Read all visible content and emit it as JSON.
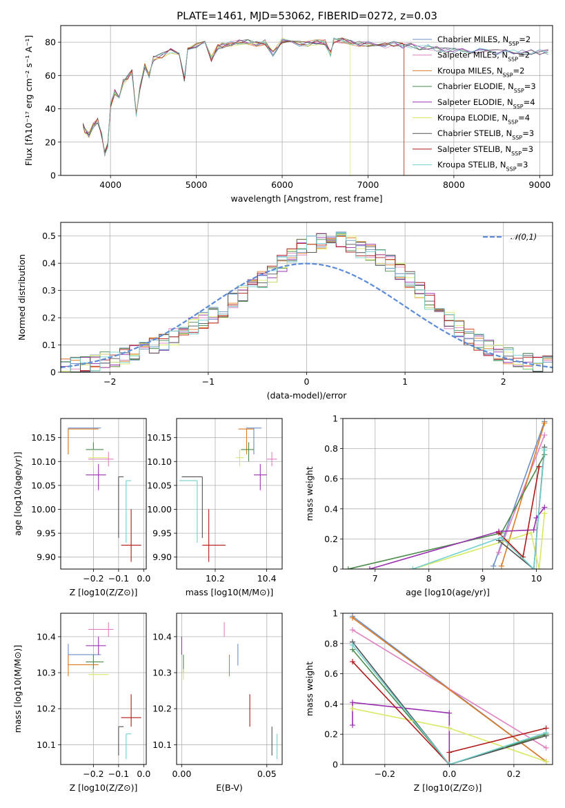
{
  "page": {
    "title": "PLATE=1461, MJD=53062, FIBERID=0272, z=0.03"
  },
  "colors": {
    "Chabrier MILES": "#6a8ec8",
    "Salpeter MILES": "#e07fc0",
    "Kroupa MILES": "#e07a20",
    "Chabrier ELODIE": "#4a8a4a",
    "Salpeter ELODIE": "#9a30b0",
    "Kroupa ELODIE": "#d8e860",
    "Chabrier STELIB": "#505050",
    "Salpeter STELIB": "#b01818",
    "Kroupa STELIB": "#70d0d0",
    "gauss": "#5b8bd8",
    "grid": "#b0b0b0"
  },
  "legend": [
    {
      "name": "Chabrier MILES",
      "base": "Chabrier MILES, N",
      "sub": "SSP",
      "tail": "=2"
    },
    {
      "name": "Salpeter MILES",
      "base": "Salpeter MILES, N",
      "sub": "SSP",
      "tail": "=2"
    },
    {
      "name": "Kroupa MILES",
      "base": "Kroupa MILES, N",
      "sub": "SSP",
      "tail": "=2"
    },
    {
      "name": "Chabrier ELODIE",
      "base": "Chabrier ELODIE, N",
      "sub": "SSP",
      "tail": "=3"
    },
    {
      "name": "Salpeter ELODIE",
      "base": "Salpeter ELODIE, N",
      "sub": "SSP",
      "tail": "=4"
    },
    {
      "name": "Kroupa ELODIE",
      "base": "Kroupa ELODIE, N",
      "sub": "SSP",
      "tail": "=4"
    },
    {
      "name": "Chabrier STELIB",
      "base": "Chabrier STELIB, N",
      "sub": "SSP",
      "tail": "=3"
    },
    {
      "name": "Salpeter STELIB",
      "base": "Salpeter STELIB, N",
      "sub": "SSP",
      "tail": "=3"
    },
    {
      "name": "Kroupa STELIB",
      "base": "Kroupa STELIB, N",
      "sub": "SSP",
      "tail": "=3"
    }
  ],
  "gauss_legend": "𝒩(0,1)",
  "chart_data": [
    {
      "id": "spectrum",
      "type": "line",
      "xlabel": "wavelength [Angstrom, rest frame]",
      "ylabel": "Flux [fλ10⁻¹⁷ erg cm⁻² s⁻¹ A⁻¹]",
      "xlim": [
        3420,
        9150
      ],
      "ylim": [
        0,
        90
      ],
      "xticks": [
        4000,
        5000,
        6000,
        7000,
        8000,
        9000
      ],
      "yticks": [
        0,
        20,
        40,
        60,
        80
      ],
      "legend_position": "upper right",
      "x": [
        3680,
        3700,
        3750,
        3800,
        3850,
        3900,
        3933,
        3968,
        4000,
        4050,
        4101,
        4150,
        4200,
        4250,
        4300,
        4340,
        4400,
        4450,
        4500,
        4600,
        4700,
        4800,
        4861,
        4900,
        5000,
        5100,
        5175,
        5250,
        5300,
        5400,
        5500,
        5600,
        5700,
        5800,
        5893,
        6000,
        6100,
        6200,
        6300,
        6400,
        6500,
        6563,
        6600,
        6700,
        6800,
        6900,
        7000,
        7100,
        7200,
        7300,
        7400,
        7500,
        7600,
        7700,
        7800,
        7900,
        8000,
        8100,
        8200,
        8300,
        8400,
        8500,
        8600,
        8700,
        8800,
        8900,
        9000,
        9100
      ],
      "flux": [
        30,
        27,
        24,
        30,
        33,
        24,
        13,
        18,
        42,
        50,
        48,
        56,
        59,
        62,
        36,
        52,
        66,
        60,
        70,
        72,
        75,
        74,
        58,
        76,
        78,
        79,
        70,
        77,
        78,
        79,
        80,
        80,
        79,
        80,
        73,
        81,
        80,
        79,
        79,
        80,
        80,
        73,
        81,
        81,
        80,
        79,
        79,
        79,
        78,
        79,
        78,
        78,
        77,
        77,
        76,
        75,
        75,
        75,
        75,
        75,
        75,
        74,
        74,
        74,
        74,
        74,
        74,
        74
      ],
      "dropouts": [
        {
          "series": "Kroupa ELODIE",
          "from": 6790
        },
        {
          "series": "Kroupa MILES",
          "from": 7420
        },
        {
          "series": "Salpeter STELIB",
          "from": 7420
        }
      ]
    },
    {
      "id": "residuals",
      "type": "histogram",
      "xlabel": "(data-model)/error",
      "ylabel": "Normed distribution",
      "xlim": [
        -2.5,
        2.5
      ],
      "ylim": [
        0,
        0.55
      ],
      "xticks": [
        -2,
        -1,
        0,
        1,
        2
      ],
      "yticks": [
        0.0,
        0.1,
        0.2,
        0.3,
        0.4,
        0.5
      ],
      "bin_width": 0.1,
      "bin_start": -2.5,
      "base_heights": [
        0.02,
        0.025,
        0.03,
        0.035,
        0.045,
        0.05,
        0.06,
        0.07,
        0.08,
        0.1,
        0.11,
        0.13,
        0.15,
        0.17,
        0.19,
        0.21,
        0.23,
        0.26,
        0.29,
        0.31,
        0.34,
        0.36,
        0.4,
        0.43,
        0.46,
        0.47,
        0.48,
        0.5,
        0.49,
        0.47,
        0.45,
        0.44,
        0.42,
        0.4,
        0.37,
        0.34,
        0.3,
        0.26,
        0.22,
        0.19,
        0.16,
        0.13,
        0.11,
        0.09,
        0.07,
        0.06,
        0.05,
        0.04,
        0.03,
        0.03
      ],
      "gauss": {
        "mu": 0,
        "sigma": 1,
        "label": "𝒩(0,1)"
      }
    },
    {
      "id": "age-vs-Z",
      "type": "errorbar",
      "xlabel": "Z [log10(Z/Z⊙)]",
      "ylabel": "age  [log10(age/yr)]",
      "xlim": [
        -0.33,
        0.01
      ],
      "ylim": [
        9.875,
        10.19
      ],
      "xticks": [
        -0.2,
        -0.1,
        0.0
      ],
      "xtick_labels": [
        "−0.2",
        "−0.1",
        "0.0"
      ],
      "yticks": [
        9.9,
        9.95,
        10.0,
        10.05,
        10.1,
        10.15
      ],
      "ytick_labels": [
        "9.90",
        "9.95",
        "10.00",
        "10.05",
        "10.10",
        "10.15"
      ]
    },
    {
      "id": "age-vs-mass",
      "type": "errorbar",
      "xlabel": "mass [log10(M/M⊙)]",
      "ylabel": "",
      "xlim": [
        10.05,
        10.46
      ],
      "ylim": [
        9.875,
        10.19
      ],
      "xticks": [
        10.2,
        10.4
      ],
      "xtick_labels": [
        "10.2",
        "10.4"
      ],
      "yticks": [
        9.9,
        9.95,
        10.0,
        10.05,
        10.1,
        10.15
      ],
      "ytick_labels": [
        "9.90",
        "9.95",
        "10.00",
        "10.05",
        "10.10",
        "10.15"
      ]
    },
    {
      "id": "weight-vs-age",
      "type": "line",
      "xlabel": "age  [log10(age/yr)]",
      "ylabel": "mass weight",
      "xlim": [
        6.4,
        10.3
      ],
      "ylim": [
        0,
        1.0
      ],
      "xticks": [
        7,
        8,
        9,
        10
      ],
      "yticks": [
        0.0,
        0.2,
        0.4,
        0.6,
        0.8,
        1.0
      ],
      "series": [
        {
          "name": "Chabrier MILES",
          "x": [
            9.2,
            10.15
          ],
          "y": [
            0.02,
            0.98
          ]
        },
        {
          "name": "Salpeter MILES",
          "x": [
            9.3,
            10.15
          ],
          "y": [
            0.11,
            0.89
          ]
        },
        {
          "name": "Kroupa MILES",
          "x": [
            9.35,
            10.15
          ],
          "y": [
            0.02,
            0.97
          ]
        },
        {
          "name": "Chabrier ELODIE",
          "x": [
            6.5,
            9.35,
            10.15
          ],
          "y": [
            0.0,
            0.24,
            0.76
          ]
        },
        {
          "name": "Salpeter ELODIE",
          "x": [
            6.9,
            9.3,
            9.95,
            10.0,
            10.15
          ],
          "y": [
            0.0,
            0.25,
            0.26,
            0.34,
            0.41
          ]
        },
        {
          "name": "Kroupa ELODIE",
          "x": [
            7.7,
            9.9,
            10.05,
            10.15
          ],
          "y": [
            0.0,
            0.24,
            0.0,
            0.37
          ]
        },
        {
          "name": "Chabrier STELIB",
          "x": [
            9.3,
            9.95,
            10.15
          ],
          "y": [
            0.19,
            0.0,
            0.81
          ]
        },
        {
          "name": "Salpeter STELIB",
          "x": [
            9.3,
            9.75,
            10.05
          ],
          "y": [
            0.24,
            0.08,
            0.68
          ]
        },
        {
          "name": "Kroupa STELIB",
          "x": [
            7.7,
            9.35,
            9.95,
            10.15
          ],
          "y": [
            0.0,
            0.21,
            0.0,
            0.79
          ]
        }
      ]
    },
    {
      "id": "mass-vs-Z",
      "type": "errorbar",
      "xlabel": "Z [log10(Z/Z⊙)]",
      "ylabel": "mass [log10(M/M⊙)]",
      "xlim": [
        -0.33,
        0.01
      ],
      "ylim": [
        10.045,
        10.465
      ],
      "xticks": [
        -0.2,
        -0.1,
        0.0
      ],
      "xtick_labels": [
        "−0.2",
        "−0.1",
        "0.0"
      ],
      "yticks": [
        10.1,
        10.2,
        10.3,
        10.4
      ],
      "ytick_labels": [
        "10.1",
        "10.2",
        "10.3",
        "10.4"
      ]
    },
    {
      "id": "mass-vs-EBV",
      "type": "errorbar",
      "xlabel": "E(B-V)",
      "ylabel": "",
      "xlim": [
        -0.003,
        0.059
      ],
      "ylim": [
        10.045,
        10.465
      ],
      "xticks": [
        0.0,
        0.05
      ],
      "xtick_labels": [
        "0.00",
        "0.05"
      ],
      "yticks": [
        10.1,
        10.2,
        10.3,
        10.4
      ],
      "ytick_labels": [
        "10.1",
        "10.2",
        "10.3",
        "10.4"
      ]
    },
    {
      "id": "weight-vs-Z",
      "type": "line",
      "xlabel": "Z [log10(Z/Z⊙)]",
      "ylabel": "mass weight",
      "xlim": [
        -0.33,
        0.32
      ],
      "ylim": [
        0,
        1.0
      ],
      "xticks": [
        -0.2,
        0.0,
        0.2
      ],
      "xtick_labels": [
        "−0.2",
        "0.0",
        "0.2"
      ],
      "yticks": [
        0.0,
        0.2,
        0.4,
        0.6,
        0.8,
        1.0
      ],
      "series": [
        {
          "name": "Chabrier MILES",
          "x": [
            -0.3,
            0.3
          ],
          "y": [
            0.98,
            0.02
          ]
        },
        {
          "name": "Salpeter MILES",
          "x": [
            -0.3,
            0.3
          ],
          "y": [
            0.89,
            0.11
          ]
        },
        {
          "name": "Kroupa MILES",
          "x": [
            -0.3,
            0.3
          ],
          "y": [
            0.97,
            0.02
          ]
        },
        {
          "name": "Chabrier ELODIE",
          "x": [
            -0.3,
            0.0,
            0.3
          ],
          "y": [
            0.76,
            0.0,
            0.2
          ]
        },
        {
          "name": "Salpeter ELODIE",
          "x": [
            -0.3,
            -0.3,
            0.0,
            0.0
          ],
          "y": [
            0.26,
            0.41,
            0.34,
            0.0
          ]
        },
        {
          "name": "Kroupa ELODIE",
          "x": [
            -0.3,
            0.0,
            0.3
          ],
          "y": [
            0.37,
            0.24,
            0.02
          ]
        },
        {
          "name": "Chabrier STELIB",
          "x": [
            -0.3,
            0.0,
            0.3
          ],
          "y": [
            0.81,
            0.0,
            0.19
          ]
        },
        {
          "name": "Salpeter STELIB",
          "x": [
            -0.3,
            0.0,
            0.0,
            0.3
          ],
          "y": [
            0.68,
            0.0,
            0.08,
            0.24
          ]
        },
        {
          "name": "Kroupa STELIB",
          "x": [
            -0.3,
            0.0,
            0.3
          ],
          "y": [
            0.79,
            0.0,
            0.21
          ]
        }
      ]
    }
  ],
  "best_fits": [
    {
      "name": "Chabrier MILES",
      "Z": -0.3,
      "Z_lo": -0.3,
      "Z_hi": -0.17,
      "age": 10.17,
      "age_lo": 10.115,
      "age_hi": 10.17,
      "mass": 10.35,
      "mass_lo": 10.32,
      "mass_hi": 10.38,
      "ebv": 0.033
    },
    {
      "name": "Salpeter MILES",
      "Z": -0.14,
      "Z_lo": -0.22,
      "Z_hi": -0.12,
      "age": 10.105,
      "age_lo": 10.09,
      "age_hi": 10.12,
      "mass": 10.42,
      "mass_lo": 10.4,
      "mass_hi": 10.44,
      "ebv": 0.025
    },
    {
      "name": "Kroupa MILES",
      "Z": -0.3,
      "Z_lo": -0.3,
      "Z_hi": -0.18,
      "age": 10.168,
      "age_lo": 10.115,
      "age_hi": 10.168,
      "mass": 10.322,
      "mass_lo": 10.29,
      "mass_hi": 10.35,
      "ebv": 0.028
    },
    {
      "name": "Chabrier ELODIE",
      "Z": -0.2,
      "Z_lo": -0.23,
      "Z_hi": -0.16,
      "age": 10.125,
      "age_lo": 10.1,
      "age_hi": 10.14,
      "mass": 10.33,
      "mass_lo": 10.3,
      "mass_hi": 10.35,
      "ebv": 0.001
    },
    {
      "name": "Salpeter ELODIE",
      "Z": -0.18,
      "Z_lo": -0.23,
      "Z_hi": -0.15,
      "age": 10.072,
      "age_lo": 10.04,
      "age_hi": 10.095,
      "mass": 10.375,
      "mass_lo": 10.35,
      "mass_hi": 10.4,
      "ebv": 0.0
    },
    {
      "name": "Kroupa ELODIE",
      "Z": -0.2,
      "Z_lo": -0.22,
      "Z_hi": -0.14,
      "age": 10.108,
      "age_lo": 10.09,
      "age_hi": 10.125,
      "mass": 10.295,
      "mass_lo": 10.28,
      "mass_hi": 10.31,
      "ebv": 0.001
    },
    {
      "name": "Chabrier STELIB",
      "Z": -0.1,
      "Z_lo": -0.1,
      "Z_hi": -0.08,
      "age": 10.068,
      "age_lo": 9.94,
      "age_hi": 10.068,
      "mass": 10.15,
      "mass_lo": 10.07,
      "mass_hi": 10.15,
      "ebv": 0.053
    },
    {
      "name": "Salpeter STELIB",
      "Z": -0.05,
      "Z_lo": -0.09,
      "Z_hi": -0.01,
      "age": 9.925,
      "age_lo": 9.89,
      "age_hi": 10.0,
      "mass": 10.175,
      "mass_lo": 10.15,
      "mass_hi": 10.24,
      "ebv": 0.04
    },
    {
      "name": "Kroupa STELIB",
      "Z": -0.07,
      "Z_lo": -0.07,
      "Z_hi": -0.05,
      "age": 10.06,
      "age_lo": 9.93,
      "age_hi": 10.06,
      "mass": 10.13,
      "mass_lo": 10.06,
      "mass_hi": 10.13,
      "ebv": 0.056
    }
  ]
}
